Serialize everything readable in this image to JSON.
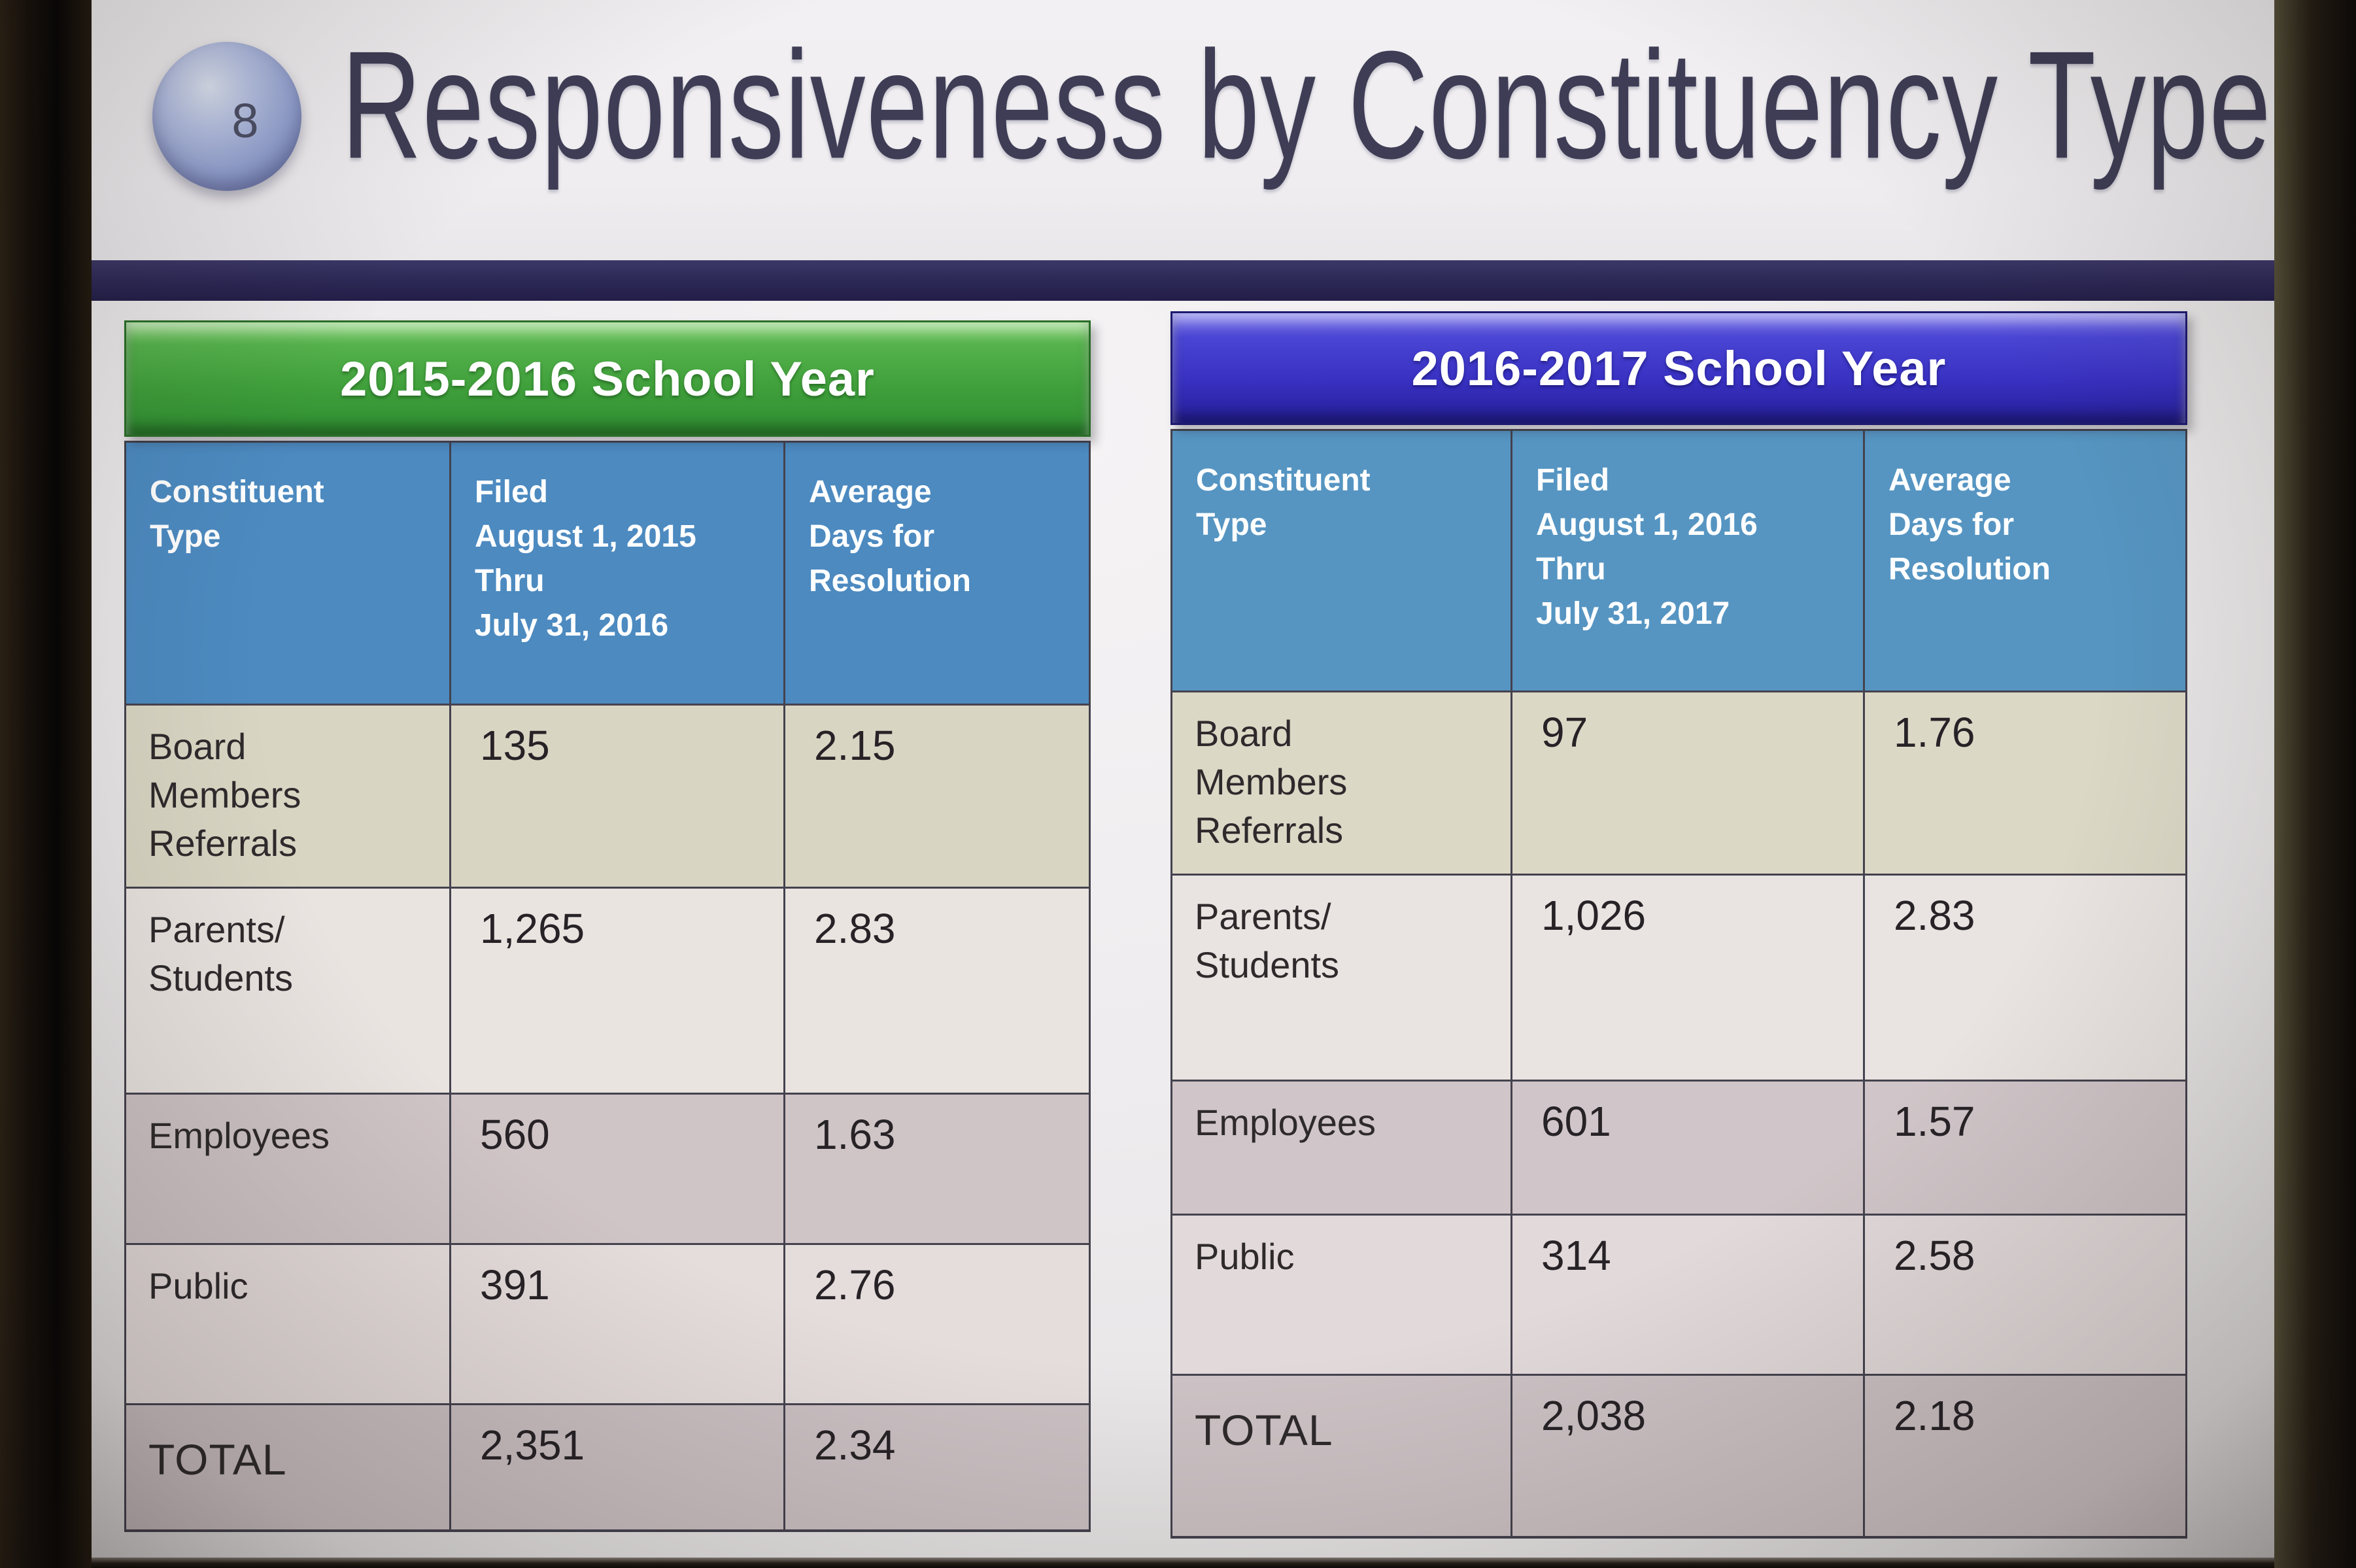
{
  "slide": {
    "page_number": "8",
    "title": "Responsiveness by Constituency Type"
  },
  "colors": {
    "green_banner": "#3f9f3a",
    "blue_banner": "#3730bf",
    "header_blue_left": "#4c8ac0",
    "header_blue_right": "#5695c2",
    "navy_rule": "#2e2a58"
  },
  "left_table": {
    "banner": "2015-2016 School Year",
    "headers": {
      "constituent_type": "Constituent\nType",
      "filed": "Filed\nAugust 1, 2015\nThru\nJuly 31, 2016",
      "average": "Average\nDays for\nResolution"
    },
    "rows": [
      {
        "label": "Board\nMembers\nReferrals",
        "filed": "135",
        "avg": "2.15"
      },
      {
        "label": "Parents/\nStudents",
        "filed": "1,265",
        "avg": "2.83"
      },
      {
        "label": "Employees",
        "filed": "560",
        "avg": "1.63"
      },
      {
        "label": "Public",
        "filed": "391",
        "avg": "2.76"
      },
      {
        "label": "TOTAL",
        "filed": "2,351",
        "avg": "2.34"
      }
    ]
  },
  "right_table": {
    "banner": "2016-2017 School Year",
    "headers": {
      "constituent_type": "Constituent\nType",
      "filed": "Filed\nAugust 1, 2016\nThru\nJuly 31, 2017",
      "average": "Average\nDays for\nResolution"
    },
    "rows": [
      {
        "label": "Board\nMembers\nReferrals",
        "filed": "97",
        "avg": "1.76"
      },
      {
        "label": "Parents/\nStudents",
        "filed": "1,026",
        "avg": "2.83"
      },
      {
        "label": "Employees",
        "filed": "601",
        "avg": "1.57"
      },
      {
        "label": "Public",
        "filed": "314",
        "avg": "2.58"
      },
      {
        "label": "TOTAL",
        "filed": "2,038",
        "avg": "2.18"
      }
    ]
  }
}
